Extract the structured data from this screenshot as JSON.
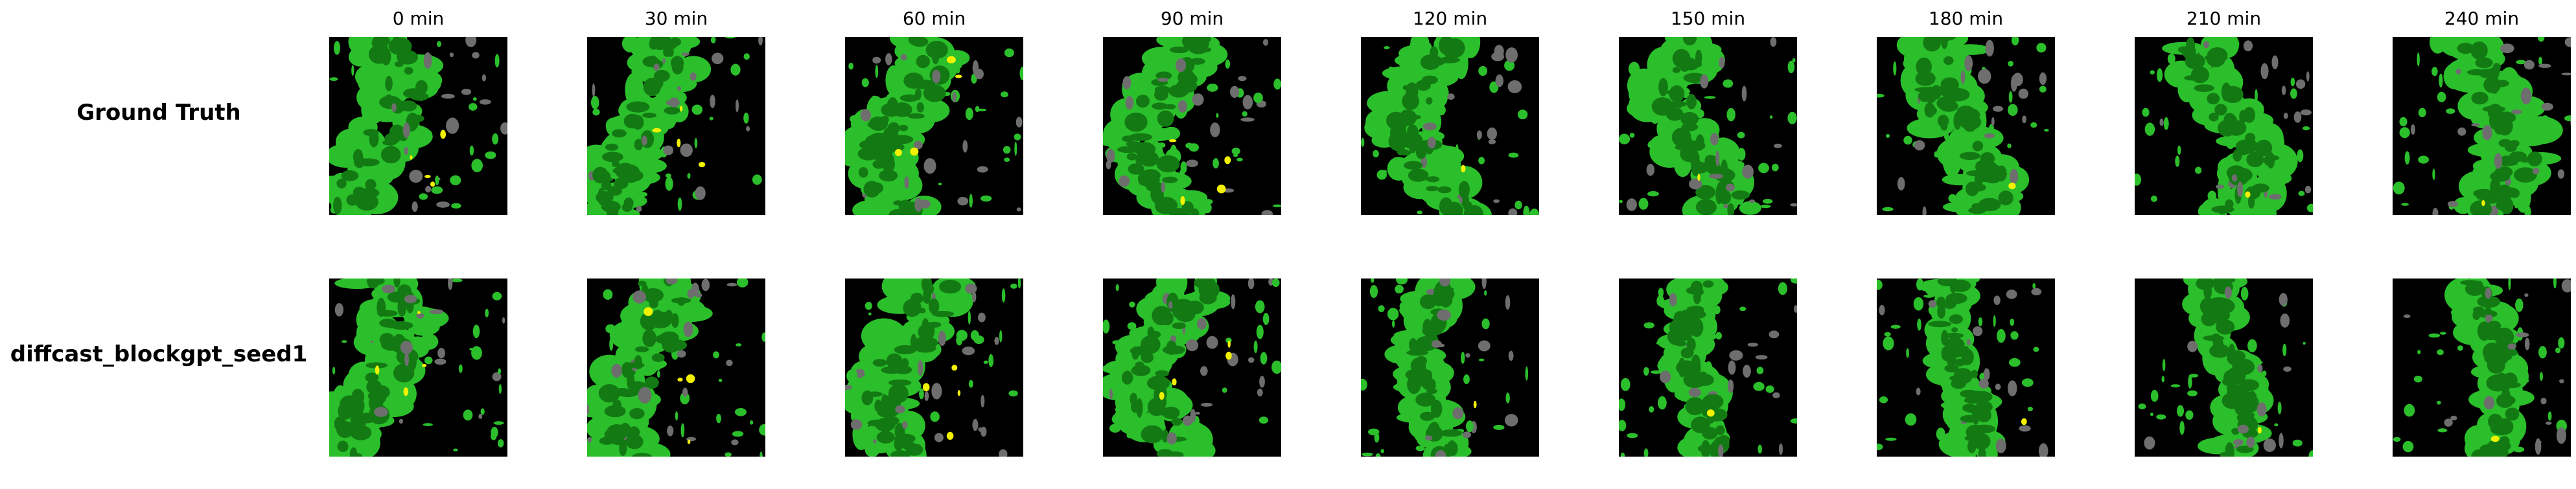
{
  "columns": [
    "0 min",
    "30 min",
    "60 min",
    "90 min",
    "120 min",
    "150 min",
    "180 min",
    "210 min",
    "240 min"
  ],
  "rows": [
    {
      "label": "Ground Truth"
    },
    {
      "label": "diffcast_blockgpt_seed1"
    }
  ],
  "colors": {
    "background": "#000000",
    "light_green": "#2bbf2b",
    "dark_green": "#137a13",
    "gray": "#6e6e6e",
    "yellow": "#f2f200"
  }
}
